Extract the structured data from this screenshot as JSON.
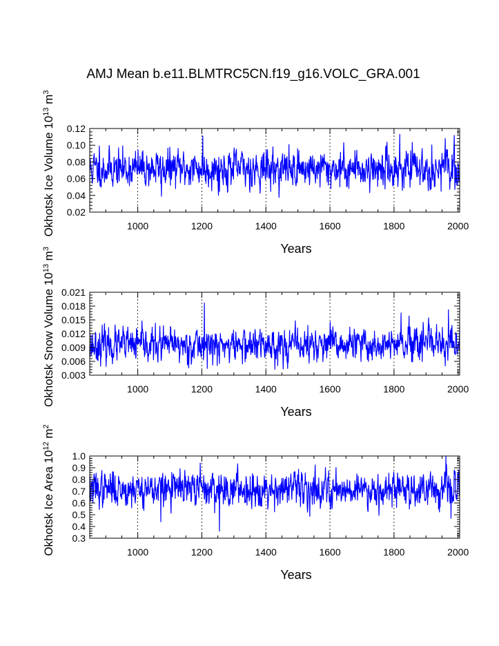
{
  "title": "AMJ Mean b.e11.BLMTRC5CN.f19_g16.VOLC_GRA.001",
  "colors": {
    "series": "#0000ff",
    "axis": "#000000",
    "grid": "#000000"
  },
  "chart_data": [
    {
      "type": "line",
      "id": "ice-volume",
      "title": "",
      "xlabel": "Years",
      "ylabel": {
        "base": "Okhotsk Ice Volume 10",
        "exp": "13",
        "unit": " m",
        "unit_exp": "3"
      },
      "xlim": [
        850,
        2005
      ],
      "ylim": [
        0.02,
        0.12
      ],
      "xticks": [
        1000,
        1200,
        1400,
        1600,
        1800,
        2000
      ],
      "xtick_labels": [
        "1000",
        "1200",
        "1400",
        "1600",
        "1800",
        "2000"
      ],
      "yticks": [
        0.02,
        0.04,
        0.06,
        0.08,
        0.1,
        0.12
      ],
      "ytick_labels": [
        "0.02",
        "0.04",
        "0.06",
        "0.08",
        "0.10",
        "0.12"
      ],
      "grid_x": [
        1000,
        1200,
        1400,
        1600,
        1800
      ],
      "series": [
        {
          "name": "Okhotsk Ice Volume",
          "x_start": 850,
          "x_end": 2005,
          "mean": 0.072,
          "spread": 0.012,
          "seed": 11,
          "events": [
            [
              880,
              0.099
            ],
            [
              1074,
              0.039
            ],
            [
              1203,
              0.111
            ],
            [
              1252,
              0.04
            ],
            [
              1818,
              0.113
            ],
            [
              1960,
              0.108
            ],
            [
              1990,
              0.047
            ]
          ]
        }
      ]
    },
    {
      "type": "line",
      "id": "snow-volume",
      "title": "",
      "xlabel": "Years",
      "ylabel": {
        "base": "Okhotsk Snow Volume 10",
        "exp": "13",
        "unit": " m",
        "unit_exp": "3"
      },
      "xlim": [
        850,
        2005
      ],
      "ylim": [
        0.003,
        0.021
      ],
      "xticks": [
        1000,
        1200,
        1400,
        1600,
        1800,
        2000
      ],
      "xtick_labels": [
        "1000",
        "1200",
        "1400",
        "1600",
        "1800",
        "2000"
      ],
      "yticks": [
        0.003,
        0.006,
        0.009,
        0.012,
        0.015,
        0.018,
        0.021
      ],
      "ytick_labels": [
        "0.003",
        "0.006",
        "0.009",
        "0.012",
        "0.015",
        "0.018",
        "0.021"
      ],
      "grid_x": [
        1000,
        1200,
        1400,
        1600,
        1800
      ],
      "series": [
        {
          "name": "Okhotsk Snow Volume",
          "x_start": 850,
          "x_end": 2005,
          "mean": 0.0095,
          "spread": 0.002,
          "seed": 23,
          "events": [
            [
              1208,
              0.0187
            ],
            [
              1822,
              0.0165
            ],
            [
              1970,
              0.0172
            ],
            [
              1248,
              0.0051
            ],
            [
              1960,
              0.005
            ]
          ]
        }
      ]
    },
    {
      "type": "line",
      "id": "ice-area",
      "title": "",
      "xlabel": "Years",
      "ylabel": {
        "base": "Okhotsk Ice Area 10",
        "exp": "12",
        "unit": " m",
        "unit_exp": "2"
      },
      "xlim": [
        850,
        2005
      ],
      "ylim": [
        0.3,
        1.0
      ],
      "xticks": [
        1000,
        1200,
        1400,
        1600,
        1800,
        2000
      ],
      "xtick_labels": [
        "1000",
        "1200",
        "1400",
        "1600",
        "1800",
        "2000"
      ],
      "yticks": [
        0.3,
        0.4,
        0.5,
        0.6,
        0.7,
        0.8,
        0.9,
        1.0
      ],
      "ytick_labels": [
        "0.3",
        "0.4",
        "0.5",
        "0.6",
        "0.7",
        "0.8",
        "0.9",
        "1.0"
      ],
      "grid_x": [
        1000,
        1200,
        1400,
        1600,
        1800
      ],
      "series": [
        {
          "name": "Okhotsk Ice Area",
          "x_start": 850,
          "x_end": 2005,
          "mean": 0.72,
          "spread": 0.08,
          "seed": 37,
          "events": [
            [
              1255,
              0.36
            ],
            [
              1962,
              1.0
            ],
            [
              1072,
              0.44
            ],
            [
              1195,
              0.94
            ],
            [
              1978,
              0.47
            ]
          ]
        }
      ]
    }
  ]
}
